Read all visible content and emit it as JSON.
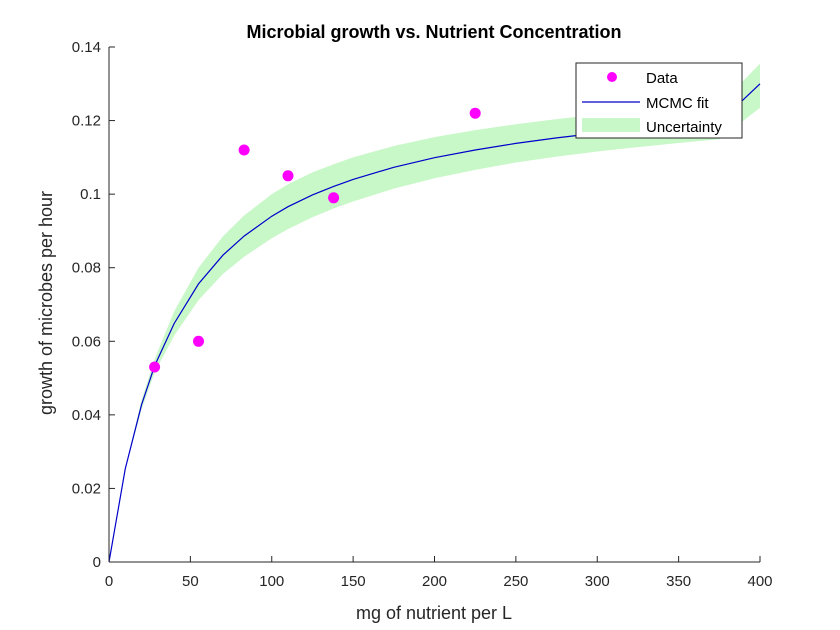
{
  "chart_data": {
    "type": "scatter",
    "title": "Microbial growth vs. Nutrient Concentration",
    "xlabel": "mg of nutrient per L",
    "ylabel": "growth of microbes per hour",
    "xlim": [
      0,
      400
    ],
    "ylim": [
      0,
      0.14
    ],
    "x_ticks": [
      0,
      50,
      100,
      150,
      200,
      250,
      300,
      350,
      400
    ],
    "y_ticks": [
      0,
      0.02,
      0.04,
      0.06,
      0.08,
      0.1,
      0.12,
      0.14
    ],
    "x_tick_labels": [
      "0",
      "50",
      "100",
      "150",
      "200",
      "250",
      "300",
      "350",
      "400"
    ],
    "y_tick_labels": [
      "0",
      "0.02",
      "0.04",
      "0.06",
      "0.08",
      "0.1",
      "0.12",
      "0.14"
    ],
    "grid": false,
    "legend_position": "top-right",
    "series": [
      {
        "name": "Data",
        "kind": "scatter",
        "color": "#ff00ff",
        "points": [
          {
            "x": 28,
            "y": 0.053
          },
          {
            "x": 55,
            "y": 0.06
          },
          {
            "x": 83,
            "y": 0.112
          },
          {
            "x": 110,
            "y": 0.105
          },
          {
            "x": 138,
            "y": 0.099
          },
          {
            "x": 225,
            "y": 0.122
          }
        ]
      },
      {
        "name": "MCMC fit",
        "kind": "line",
        "color": "#0000cc",
        "x": [
          0,
          10,
          20,
          28,
          40,
          55,
          70,
          83,
          100,
          110,
          125,
          138,
          150,
          175,
          200,
          225,
          250,
          275,
          300,
          325,
          350,
          375,
          400
        ],
        "y": [
          0,
          0.0254,
          0.0428,
          0.0533,
          0.0648,
          0.0756,
          0.0834,
          0.0886,
          0.094,
          0.0966,
          0.0998,
          0.1021,
          0.104,
          0.1073,
          0.1099,
          0.112,
          0.1138,
          0.1153,
          0.1166,
          0.1177,
          0.1187,
          0.1195,
          0.13
        ]
      },
      {
        "name": "Uncertainty",
        "kind": "band",
        "color": "#c8f7c8",
        "x": [
          0,
          10,
          20,
          28,
          40,
          55,
          70,
          83,
          100,
          110,
          125,
          138,
          150,
          175,
          200,
          225,
          250,
          275,
          300,
          325,
          350,
          375,
          400
        ],
        "lower": [
          0,
          0.0252,
          0.0415,
          0.0515,
          0.0615,
          0.0712,
          0.0783,
          0.083,
          0.088,
          0.0905,
          0.0937,
          0.0961,
          0.098,
          0.1015,
          0.1043,
          0.1066,
          0.1086,
          0.1102,
          0.1116,
          0.1128,
          0.1139,
          0.1149,
          0.1235
        ],
        "upper": [
          0,
          0.0256,
          0.0441,
          0.0551,
          0.0681,
          0.08,
          0.0885,
          0.0942,
          0.1,
          0.1027,
          0.1059,
          0.1081,
          0.11,
          0.1131,
          0.1155,
          0.1174,
          0.119,
          0.1204,
          0.1216,
          0.1226,
          0.1235,
          0.1241,
          0.1355
        ]
      }
    ]
  }
}
